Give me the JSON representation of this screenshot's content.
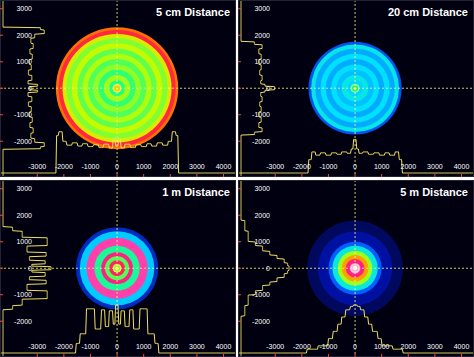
{
  "chart_data": [
    {
      "type": "beam_profile",
      "title": "5 cm Distance",
      "xlim": [
        -4400,
        4470
      ],
      "ylim": [
        -3350,
        3330
      ],
      "xticks": [
        -3000,
        -2000,
        -1000,
        0,
        1000,
        2000,
        3000,
        4000
      ],
      "yticks": [
        -2000,
        -1000,
        0,
        1000,
        2000,
        3000
      ],
      "radius": [
        2300,
        2200,
        2050,
        1900,
        1700,
        1500,
        1300,
        1100,
        900,
        700,
        500,
        300,
        150,
        60
      ],
      "level": [
        0.78,
        0.86,
        0.66,
        0.58,
        0.63,
        0.56,
        0.61,
        0.55,
        0.59,
        0.53,
        0.6,
        0.52,
        0.72,
        0.56
      ]
    },
    {
      "type": "beam_profile",
      "title": "20 cm Distance",
      "xlim": [
        -4400,
        4470
      ],
      "ylim": [
        -3350,
        3330
      ],
      "xticks": [
        -3000,
        -2000,
        -1000,
        0,
        1000,
        2000,
        3000,
        4000
      ],
      "yticks": [
        -2000,
        -1000,
        0,
        1000,
        2000,
        3000
      ],
      "radius": [
        1750,
        1650,
        1500,
        1300,
        1100,
        900,
        700,
        500,
        300,
        150,
        60
      ],
      "level": [
        0.28,
        0.44,
        0.37,
        0.42,
        0.37,
        0.42,
        0.39,
        0.44,
        0.41,
        0.5,
        0.7
      ]
    },
    {
      "type": "beam_profile",
      "title": "1 m Distance",
      "xlim": [
        -4400,
        4470
      ],
      "ylim": [
        -3350,
        3330
      ],
      "xticks": [
        -3000,
        -2000,
        -1000,
        0,
        1000,
        2000,
        3000,
        4000
      ],
      "yticks": [
        -2000,
        -1000,
        0,
        1000,
        2000,
        3000
      ],
      "radius": [
        1550,
        1400,
        1150,
        850,
        600,
        450,
        300,
        150,
        60
      ],
      "level": [
        0.2,
        0.4,
        0.92,
        0.5,
        0.9,
        0.55,
        0.88,
        0.6,
        1.0
      ]
    },
    {
      "type": "beam_profile",
      "title": "5 m Distance",
      "xlim": [
        -4400,
        4470
      ],
      "ylim": [
        -3350,
        3330
      ],
      "xticks": [
        -3000,
        -2000,
        -1000,
        0,
        1000,
        2000,
        3000,
        4000
      ],
      "yticks": [
        -2000,
        -1000,
        0,
        1000,
        2000,
        3000
      ],
      "radius": [
        1800,
        1400,
        1000,
        850,
        650,
        500,
        350,
        200,
        80
      ],
      "level": [
        0.08,
        0.15,
        0.3,
        0.45,
        0.6,
        0.75,
        0.9,
        0.97,
        1.0
      ]
    }
  ]
}
